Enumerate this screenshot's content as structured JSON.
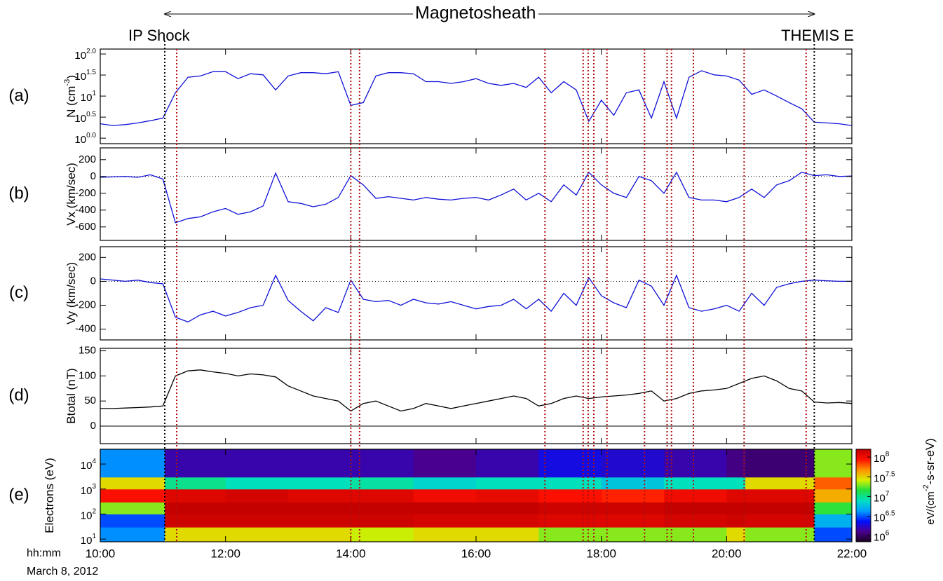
{
  "figure": {
    "title": "Magnetosheath",
    "left_annotation": "IP Shock",
    "right_annotation": "THEMIS E",
    "time_label": "hh:mm",
    "date_label": "March 8, 2012",
    "events": {
      "black": [
        11.03,
        21.4
      ],
      "red": [
        11.22,
        14.0,
        14.14,
        17.1,
        17.71,
        17.79,
        17.88,
        18.09,
        18.69,
        19.05,
        19.12,
        19.47,
        20.28,
        21.27
      ],
      "black_color": "#000000",
      "red_color": "#b01010"
    }
  },
  "chart_data": [
    {
      "type": "line",
      "panel_label": "(a)",
      "ylabel": "N (cm",
      "ylabel_sup": "-3",
      "ylabel_after": ")",
      "xlim": [
        10,
        22
      ],
      "ylim": [
        0.74,
        131
      ],
      "log_y": true,
      "yticks": [
        {
          "value": 1,
          "label": "10",
          "exponent": "0.0"
        },
        {
          "value": 3.162,
          "label": "10",
          "exponent": "0.5"
        },
        {
          "value": 10,
          "label": "10",
          "exponent": "1"
        },
        {
          "value": 31.62,
          "label": "10",
          "exponent": "1.5"
        },
        {
          "value": 100,
          "label": "10",
          "exponent": "2.0"
        }
      ],
      "x": [
        10,
        10.2,
        10.4,
        10.6,
        10.8,
        11,
        11.2,
        11.4,
        11.6,
        11.8,
        12,
        12.2,
        12.4,
        12.6,
        12.8,
        13,
        13.2,
        13.4,
        13.6,
        13.8,
        14,
        14.2,
        14.4,
        14.6,
        14.8,
        15,
        15.2,
        15.4,
        15.6,
        15.8,
        16,
        16.2,
        16.4,
        16.6,
        16.8,
        17,
        17.2,
        17.4,
        17.6,
        17.8,
        18,
        18.2,
        18.4,
        18.6,
        18.8,
        19,
        19.2,
        19.4,
        19.6,
        19.8,
        20,
        20.2,
        20.4,
        20.6,
        20.8,
        21,
        21.2,
        21.4,
        21.6,
        21.8,
        22
      ],
      "series": [
        {
          "color": "#1010d8",
          "values": [
            2.2,
            2.0,
            2.1,
            2.3,
            2.6,
            3.0,
            12,
            28,
            30,
            38,
            38,
            26,
            34,
            32,
            14,
            30,
            36,
            36,
            34,
            38,
            6,
            7,
            30,
            36,
            36,
            34,
            22,
            22,
            20,
            22,
            26,
            20,
            18,
            20,
            16,
            28,
            12,
            22,
            14,
            2.5,
            8,
            3.5,
            12,
            14,
            3,
            22,
            3,
            28,
            40,
            32,
            30,
            24,
            11,
            14,
            10,
            7,
            5,
            2.4,
            2.3,
            2.2,
            2.0
          ]
        }
      ]
    },
    {
      "type": "line",
      "panel_label": "(b)",
      "ylabel": "Vx (km/sec)",
      "xlim": [
        10,
        22
      ],
      "ylim": [
        -760,
        340
      ],
      "yticks": [
        -600,
        -400,
        -200,
        0,
        200
      ],
      "reference_line": {
        "value": 0,
        "style": "dotted"
      },
      "x": [
        10,
        10.2,
        10.4,
        10.6,
        10.8,
        11,
        11.2,
        11.4,
        11.6,
        11.8,
        12,
        12.2,
        12.4,
        12.6,
        12.8,
        13,
        13.2,
        13.4,
        13.6,
        13.8,
        14,
        14.2,
        14.4,
        14.6,
        14.8,
        15,
        15.2,
        15.4,
        15.6,
        15.8,
        16,
        16.2,
        16.4,
        16.6,
        16.8,
        17,
        17.2,
        17.4,
        17.6,
        17.8,
        18,
        18.2,
        18.4,
        18.6,
        18.8,
        19,
        19.2,
        19.4,
        19.6,
        19.8,
        20,
        20.2,
        20.4,
        20.6,
        20.8,
        21,
        21.2,
        21.4,
        21.6,
        21.8,
        22
      ],
      "series": [
        {
          "color": "#1010d8",
          "values": [
            -10,
            -5,
            0,
            -10,
            20,
            -30,
            -550,
            -500,
            -480,
            -420,
            -380,
            -450,
            -420,
            -350,
            40,
            -300,
            -320,
            -360,
            -330,
            -250,
            10,
            -100,
            -260,
            -240,
            -260,
            -280,
            -250,
            -270,
            -280,
            -260,
            -250,
            -280,
            -220,
            -150,
            -280,
            -200,
            -300,
            -100,
            -220,
            50,
            -100,
            -200,
            -250,
            0,
            -50,
            -200,
            50,
            -250,
            -280,
            -280,
            -300,
            -250,
            -150,
            -250,
            -100,
            -50,
            50,
            10,
            20,
            0,
            5
          ]
        }
      ]
    },
    {
      "type": "line",
      "panel_label": "(c)",
      "ylabel": "Vy (km/sec)",
      "xlim": [
        10,
        22
      ],
      "ylim": [
        -490,
        290
      ],
      "yticks": [
        -400,
        -200,
        0,
        200
      ],
      "reference_line": {
        "value": 0,
        "style": "dotted"
      },
      "x": [
        10,
        10.2,
        10.4,
        10.6,
        10.8,
        11,
        11.2,
        11.4,
        11.6,
        11.8,
        12,
        12.2,
        12.4,
        12.6,
        12.8,
        13,
        13.2,
        13.4,
        13.6,
        13.8,
        14,
        14.2,
        14.4,
        14.6,
        14.8,
        15,
        15.2,
        15.4,
        15.6,
        15.8,
        16,
        16.2,
        16.4,
        16.6,
        16.8,
        17,
        17.2,
        17.4,
        17.6,
        17.8,
        18,
        18.2,
        18.4,
        18.6,
        18.8,
        19,
        19.2,
        19.4,
        19.6,
        19.8,
        20,
        20.2,
        20.4,
        20.6,
        20.8,
        21,
        21.2,
        21.4,
        21.6,
        21.8,
        22
      ],
      "series": [
        {
          "color": "#1010d8",
          "values": [
            20,
            10,
            0,
            10,
            -10,
            -20,
            -300,
            -340,
            -280,
            -250,
            -290,
            -260,
            -220,
            -200,
            50,
            -160,
            -250,
            -330,
            -220,
            -260,
            10,
            -150,
            -170,
            -160,
            -200,
            -150,
            -180,
            -190,
            -170,
            -200,
            -230,
            -210,
            -200,
            -150,
            -230,
            -150,
            -250,
            -100,
            -200,
            30,
            -120,
            -180,
            -220,
            10,
            -40,
            -200,
            50,
            -220,
            -250,
            -230,
            -200,
            -250,
            -100,
            -200,
            -50,
            -20,
            0,
            10,
            5,
            0,
            0
          ]
        }
      ]
    },
    {
      "type": "line",
      "panel_label": "(d)",
      "ylabel": "Btotal (nT)",
      "xlim": [
        10,
        22
      ],
      "ylim": [
        -35,
        155
      ],
      "yticks": [
        0,
        50,
        100,
        150
      ],
      "reference_line": {
        "value": 0,
        "style": "solid"
      },
      "x": [
        10,
        10.2,
        10.4,
        10.6,
        10.8,
        11,
        11.2,
        11.4,
        11.6,
        11.8,
        12,
        12.2,
        12.4,
        12.6,
        12.8,
        13,
        13.2,
        13.4,
        13.6,
        13.8,
        14,
        14.2,
        14.4,
        14.6,
        14.8,
        15,
        15.2,
        15.4,
        15.6,
        15.8,
        16,
        16.2,
        16.4,
        16.6,
        16.8,
        17,
        17.2,
        17.4,
        17.6,
        17.8,
        18,
        18.2,
        18.4,
        18.6,
        18.8,
        19,
        19.2,
        19.4,
        19.6,
        19.8,
        20,
        20.2,
        20.4,
        20.6,
        20.8,
        21,
        21.2,
        21.4,
        21.6,
        21.8,
        22
      ],
      "series": [
        {
          "color": "#000000",
          "values": [
            35,
            35,
            36,
            37,
            38,
            40,
            100,
            110,
            112,
            108,
            105,
            100,
            104,
            102,
            98,
            80,
            70,
            60,
            55,
            50,
            30,
            45,
            50,
            40,
            30,
            35,
            45,
            40,
            35,
            40,
            45,
            50,
            55,
            60,
            55,
            40,
            45,
            55,
            60,
            55,
            58,
            60,
            62,
            65,
            70,
            50,
            55,
            65,
            70,
            72,
            75,
            85,
            95,
            100,
            90,
            75,
            70,
            48,
            46,
            47,
            45
          ]
        }
      ]
    },
    {
      "type": "heatmap",
      "panel_label": "(e)",
      "ylabel": "Electrons (eV)",
      "xlim": [
        10,
        22
      ],
      "ylim": [
        7.8,
        39000
      ],
      "log_y": true,
      "yticks": [
        {
          "value": 10,
          "label": "10",
          "exponent": "1"
        },
        {
          "value": 100,
          "label": "10",
          "exponent": "2"
        },
        {
          "value": 1000,
          "label": "10",
          "exponent": "3"
        },
        {
          "value": 10000,
          "label": "10",
          "exponent": "4"
        }
      ],
      "xticks": [
        {
          "value": 10,
          "label": "10:00"
        },
        {
          "value": 12,
          "label": "12:00"
        },
        {
          "value": 14,
          "label": "14:00"
        },
        {
          "value": 16,
          "label": "16:00"
        },
        {
          "value": 18,
          "label": "18:00"
        },
        {
          "value": 20,
          "label": "20:00"
        },
        {
          "value": 22,
          "label": "22:00"
        }
      ],
      "x_bins": [
        10,
        11.03,
        12,
        13,
        14,
        15,
        16,
        17,
        18,
        19,
        20,
        20.3,
        21.4,
        22
      ],
      "y_bins": [
        7.8,
        30,
        100,
        300,
        1000,
        3000,
        39000
      ],
      "values": [
        [
          4000000.0,
          3000000.0,
          20000000.0,
          90000000.0,
          30000000.0,
          4000000.0
        ],
        [
          30000000.0,
          140000000.0,
          150000000.0,
          120000000.0,
          10000000.0,
          1500000.0
        ],
        [
          30000000.0,
          140000000.0,
          150000000.0,
          130000000.0,
          8000000.0,
          1500000.0
        ],
        [
          30000000.0,
          140000000.0,
          150000000.0,
          120000000.0,
          8000000.0,
          1500000.0
        ],
        [
          25000000.0,
          140000000.0,
          150000000.0,
          120000000.0,
          9000000.0,
          1500000.0
        ],
        [
          30000000.0,
          130000000.0,
          150000000.0,
          100000000.0,
          7000000.0,
          1300000.0
        ],
        [
          30000000.0,
          130000000.0,
          150000000.0,
          110000000.0,
          8000000.0,
          1500000.0
        ],
        [
          20000000.0,
          120000000.0,
          140000000.0,
          90000000.0,
          8000000.0,
          2000000.0
        ],
        [
          20000000.0,
          120000000.0,
          140000000.0,
          80000000.0,
          6000000.0,
          1800000.0
        ],
        [
          20000000.0,
          130000000.0,
          150000000.0,
          100000000.0,
          8000000.0,
          1500000.0
        ],
        [
          30000000.0,
          140000000.0,
          150000000.0,
          120000000.0,
          8000000.0,
          1200000.0
        ],
        [
          20000000.0,
          130000000.0,
          150000000.0,
          120000000.0,
          30000000.0,
          1100000.0
        ],
        [
          3000000.0,
          5000000.0,
          15000000.0,
          40000000.0,
          60000000.0,
          20000000.0
        ]
      ],
      "zlim": [
        710000,
        158000000
      ],
      "zticks": [
        {
          "value": 1000000,
          "label": "10",
          "exponent": "6"
        },
        {
          "value": 3162278,
          "label": "10",
          "exponent": "6.5"
        },
        {
          "value": 10000000,
          "label": "10",
          "exponent": "7"
        },
        {
          "value": 31622777,
          "label": "10",
          "exponent": "7.5"
        },
        {
          "value": 100000000,
          "label": "10",
          "exponent": "8"
        }
      ],
      "zlabel": "eV/(cm",
      "zlabel_sup": "-2",
      "zlabel_after": "-s-sr-eV)",
      "colormap": [
        "#1a0020",
        "#4a0090",
        "#0010ff",
        "#00a0ff",
        "#00e0c0",
        "#20e040",
        "#d8f000",
        "#ff9000",
        "#ff1000",
        "#c00000"
      ]
    }
  ]
}
